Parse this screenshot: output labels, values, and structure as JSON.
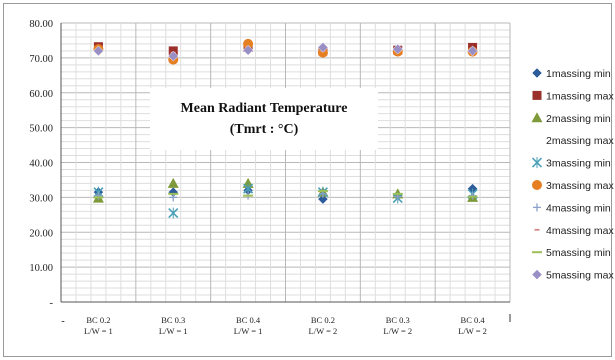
{
  "chart_data": {
    "type": "scatter",
    "title": "Mean Radiant Temperature",
    "subtitle": "(Tmrt : °C)",
    "categories": [
      [
        "BC 0.2",
        "L/W = 1"
      ],
      [
        "BC 0.3",
        "L/W = 1"
      ],
      [
        "BC 0.4",
        "L/W = 1"
      ],
      [
        "BC 0.2",
        "L/W = 2"
      ],
      [
        "BC 0.3",
        "L/W = 2"
      ],
      [
        "BC 0.4",
        "L/W = 2"
      ]
    ],
    "ylim": [
      0,
      80
    ],
    "yticks": [
      "-",
      "10.00",
      "20.00",
      "30.00",
      "40.00",
      "50.00",
      "60.00",
      "70.00",
      "80.00"
    ],
    "grid": true,
    "legend_position": "right",
    "series": [
      {
        "name": "1massing min",
        "marker": "diamond",
        "color": "#2e5c9a",
        "values": [
          31.5,
          31.5,
          32.0,
          29.5,
          30.5,
          32.5
        ]
      },
      {
        "name": "1massing max",
        "marker": "square",
        "color": "#9b2f2b",
        "values": [
          73.2,
          72.0,
          73.0,
          72.0,
          72.2,
          73.0
        ]
      },
      {
        "name": "2massing min",
        "marker": "triangle",
        "color": "#7f9a3a",
        "values": [
          29.8,
          34.0,
          34.0,
          31.5,
          31.0,
          30.0
        ]
      },
      {
        "name": "2massing max",
        "marker": "none",
        "color": "#6a5b8c",
        "values": [
          null,
          null,
          null,
          null,
          null,
          null
        ]
      },
      {
        "name": "3massing min",
        "marker": "x",
        "color": "#4aa0b8",
        "values": [
          31.5,
          25.5,
          32.5,
          31.5,
          29.8,
          31.0
        ]
      },
      {
        "name": "3massing max",
        "marker": "circle",
        "color": "#e67e22",
        "values": [
          72.5,
          69.5,
          74.0,
          71.5,
          71.8,
          71.8
        ]
      },
      {
        "name": "4massing min",
        "marker": "plus",
        "color": "#8aa0c8",
        "values": [
          30.5,
          30.0,
          30.5,
          31.0,
          30.2,
          30.5
        ]
      },
      {
        "name": "4massing max",
        "marker": "dash",
        "color": "#d08a8a",
        "values": [
          72.0,
          71.5,
          73.0,
          72.0,
          72.0,
          72.5
        ]
      },
      {
        "name": "5massing min",
        "marker": "line",
        "color": "#9cbf5a",
        "values": [
          30.0,
          31.0,
          30.5,
          31.8,
          31.0,
          30.2
        ]
      },
      {
        "name": "5massing max",
        "marker": "diamond",
        "color": "#9a8fc4",
        "values": [
          72.0,
          70.5,
          72.2,
          73.0,
          72.5,
          72.0
        ]
      }
    ]
  }
}
